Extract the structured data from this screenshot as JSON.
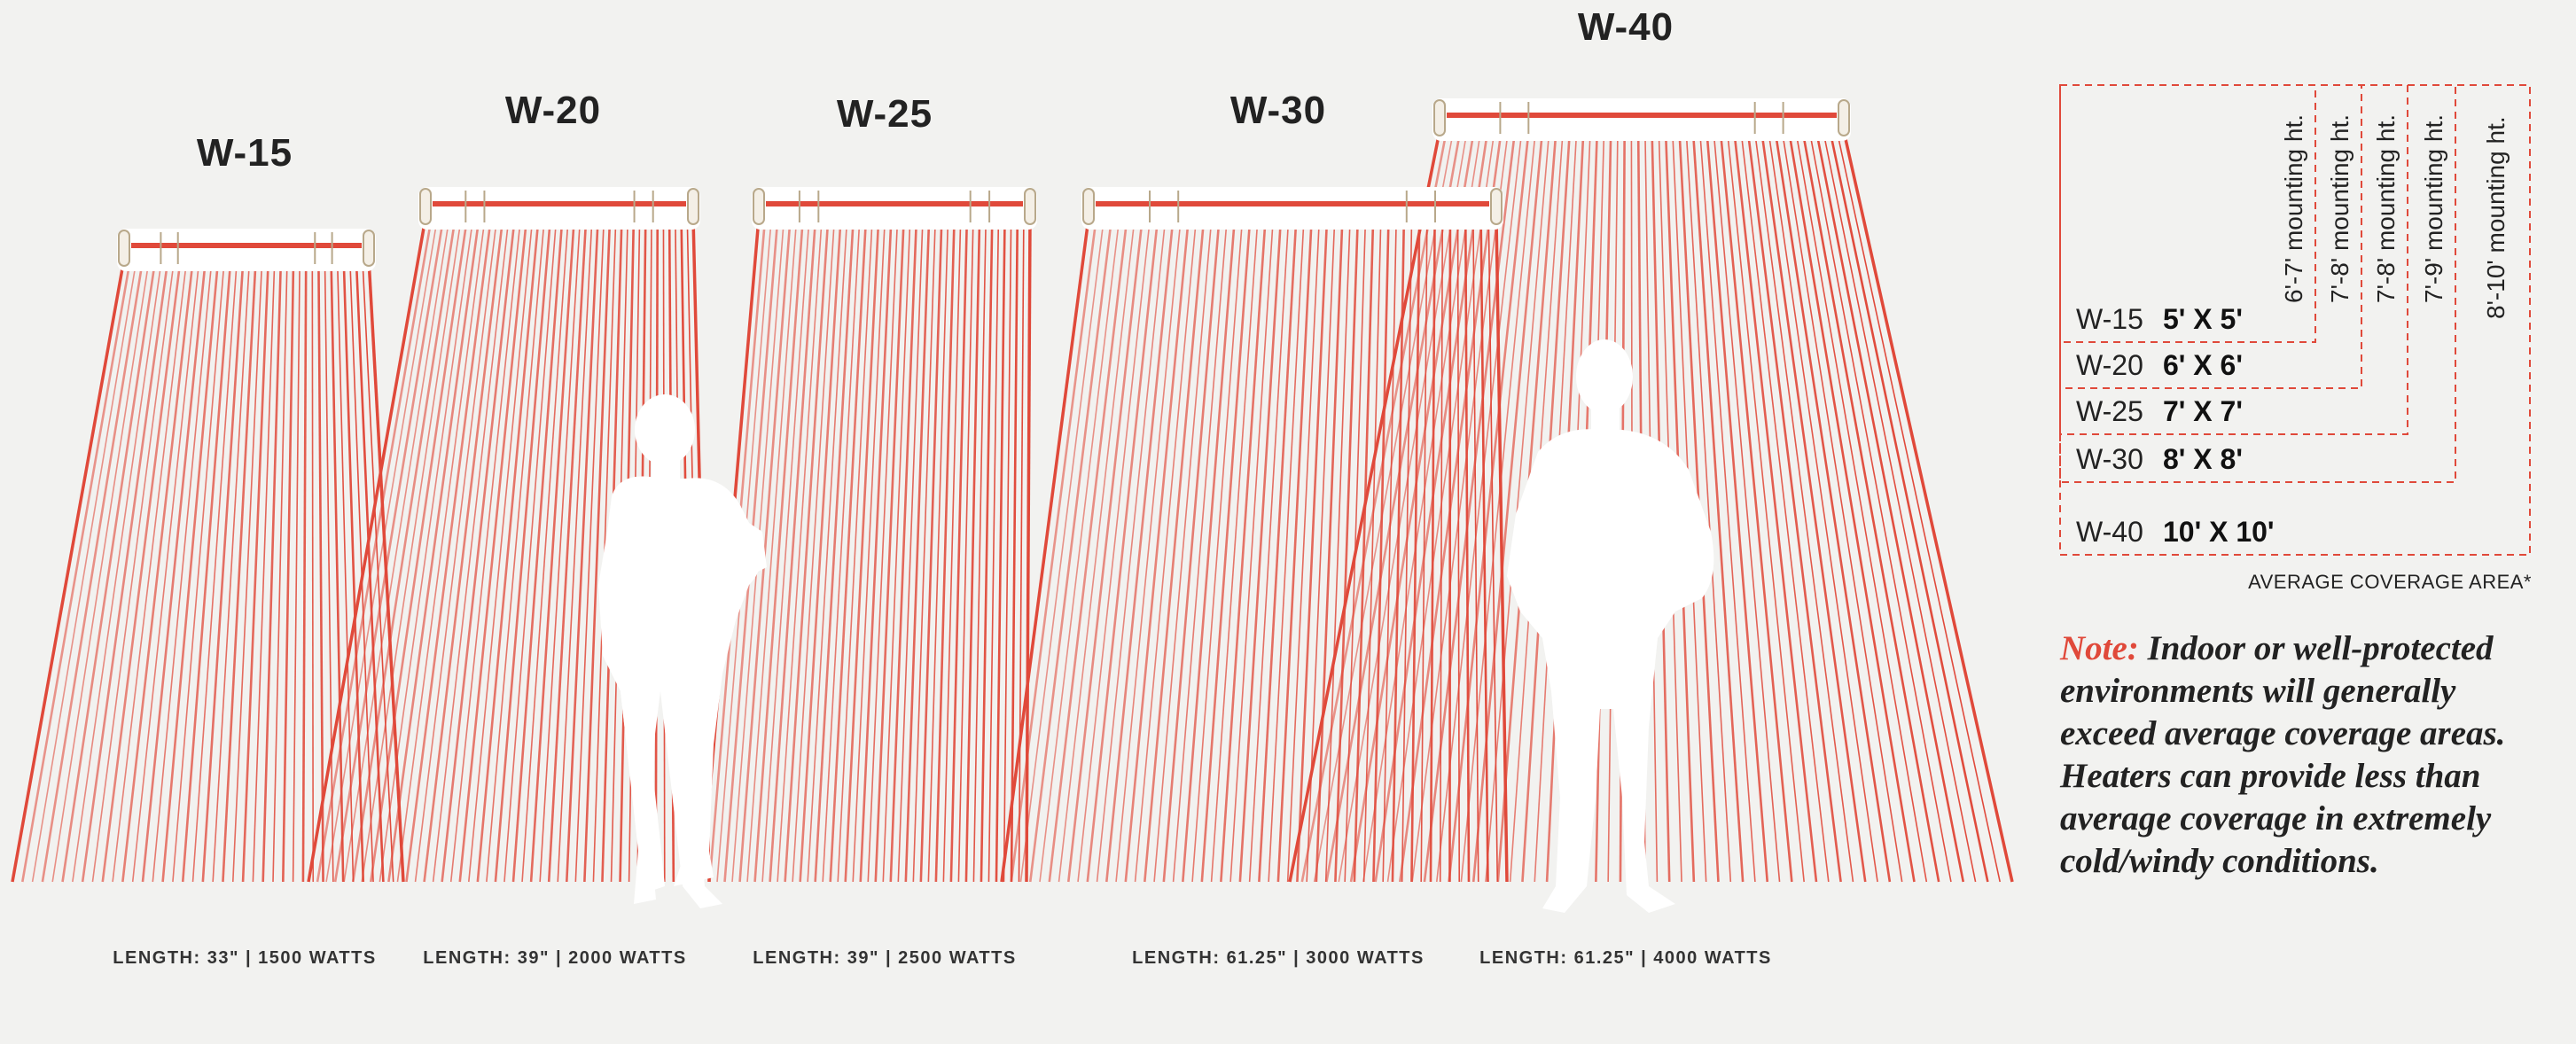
{
  "heaters": [
    {
      "model": "W-15",
      "length_label": "LENGTH: 33\" | 1500 WATTS"
    },
    {
      "model": "W-20",
      "length_label": "LENGTH: 39\" | 2000 WATTS"
    },
    {
      "model": "W-25",
      "length_label": "LENGTH: 39\" | 2500 WATTS"
    },
    {
      "model": "W-30",
      "length_label": "LENGTH: 61.25\" | 3000 WATTS"
    },
    {
      "model": "W-40",
      "length_label": "LENGTH: 61.25\" | 4000 WATTS"
    }
  ],
  "legend": {
    "mounting_heights": [
      "6'-7' mounting ht.",
      "7'-8' mounting ht.",
      "7'-8' mounting ht.",
      "7'-9' mounting ht.",
      "8'-10' mounting ht."
    ],
    "rows": [
      {
        "model": "W-15",
        "area": "5' X 5'"
      },
      {
        "model": "W-20",
        "area": "6' X 6'"
      },
      {
        "model": "W-25",
        "area": "7' X 7'"
      },
      {
        "model": "W-30",
        "area": "8' X 8'"
      },
      {
        "model": "W-40",
        "area": "10' X 10'"
      }
    ],
    "caption": "AVERAGE COVERAGE AREA*"
  },
  "note": {
    "label": "Note:",
    "text": "Indoor or well-protected environments will generally exceed average coverage areas. Heaters can provide less than average coverage in extremely cold/windy conditions."
  },
  "colors": {
    "ray": "#e0493a",
    "background": "#f2f2f0",
    "dashed_border": "#e0493a",
    "silhouette": "#ffffff"
  }
}
